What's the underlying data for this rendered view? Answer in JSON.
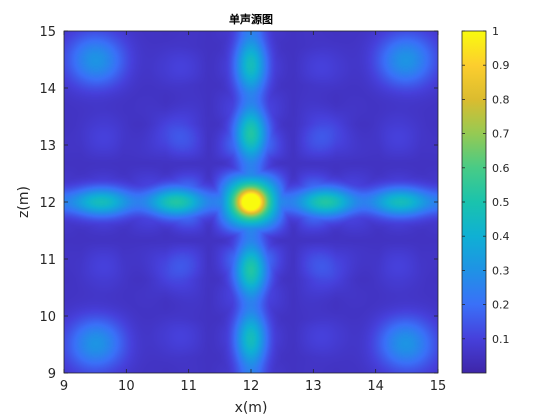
{
  "chart_data": {
    "type": "heatmap",
    "title": "单声源图",
    "xlabel": "x(m)",
    "ylabel": "z(m)",
    "xlim": [
      9,
      15
    ],
    "ylim": [
      9,
      15
    ],
    "x_ticks": [
      "9",
      "10",
      "11",
      "12",
      "13",
      "14",
      "15"
    ],
    "y_ticks": [
      "9",
      "10",
      "11",
      "12",
      "13",
      "14",
      "15"
    ],
    "colorbar": {
      "ticks": [
        "0.1",
        "0.2",
        "0.3",
        "0.4",
        "0.5",
        "0.6",
        "0.7",
        "0.8",
        "0.9",
        "1"
      ],
      "tick_values": [
        0.1,
        0.2,
        0.3,
        0.4,
        0.5,
        0.6,
        0.7,
        0.8,
        0.9,
        1.0
      ],
      "range": [
        0.0,
        1.0
      ],
      "colormap": "parula"
    },
    "source": {
      "x": 12,
      "z": 12,
      "value": 1.0
    },
    "grid": false
  }
}
